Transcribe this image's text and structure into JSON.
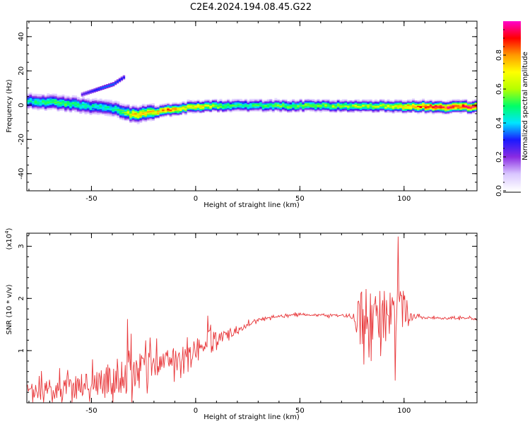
{
  "figure": {
    "title": "C2E4.2024.194.08.45.G22"
  },
  "chart_data": [
    {
      "type": "heatmap",
      "title": "C2E4.2024.194.08.45.G22",
      "xlabel": "Height of straight line (km)",
      "ylabel": "Frequency (Hz)",
      "xlim": [
        -81,
        135
      ],
      "ylim": [
        -50,
        49
      ],
      "xticks": [
        -50,
        0,
        50,
        100
      ],
      "yticks": [
        -40,
        -20,
        0,
        20,
        40
      ],
      "colorbar": {
        "label": "Normalized spectral amplitude",
        "range": [
          0,
          1
        ],
        "ticks": [
          0.0,
          0.2,
          0.4,
          0.6,
          0.8
        ],
        "colors": [
          "#ffffff",
          "#d9c6ff",
          "#8a2be2",
          "#1a1aff",
          "#00e5ff",
          "#00ff66",
          "#b5ff00",
          "#ffff00",
          "#ff9900",
          "#ff0000",
          "#ff00cc"
        ]
      },
      "ridge": {
        "x": [
          -80,
          -70,
          -60,
          -50,
          -40,
          -35,
          -30,
          -25,
          -20,
          -15,
          -10,
          -5,
          0,
          10,
          20,
          30,
          40,
          50,
          60,
          70,
          80,
          90,
          100,
          110,
          120,
          135
        ],
        "frequency": [
          2,
          1.5,
          0.5,
          -1,
          -2.5,
          -4,
          -6,
          -5,
          -4,
          -3,
          -2.5,
          -1.5,
          -1,
          -0.5,
          -0.5,
          -0.5,
          -0.7,
          -0.5,
          -0.6,
          -0.7,
          -0.8,
          -0.7,
          -0.8,
          -1.0,
          -1.2,
          -1.2
        ],
        "amplitude": [
          0.45,
          0.5,
          0.5,
          0.45,
          0.45,
          0.55,
          0.75,
          0.7,
          0.75,
          0.8,
          0.75,
          0.65,
          0.7,
          0.6,
          0.5,
          0.5,
          0.55,
          0.55,
          0.55,
          0.6,
          0.6,
          0.6,
          0.75,
          0.85,
          0.9,
          0.9
        ]
      },
      "branch": {
        "x": [
          -55,
          -50,
          -45,
          -40,
          -35
        ],
        "frequency": [
          6,
          8,
          10,
          12,
          16
        ],
        "amplitude": [
          0.25,
          0.3,
          0.35,
          0.35,
          0.3
        ]
      }
    },
    {
      "type": "line",
      "xlabel": "Height of straight line (km)",
      "ylabel": "SNR (10 * v/v)",
      "yscale_note": "(x10",
      "yscale_exp": "4",
      "yscale_close": ")",
      "xlim": [
        -81,
        135
      ],
      "ylim": [
        0,
        3.25
      ],
      "xticks": [
        -50,
        0,
        50,
        100
      ],
      "yticks": [
        1,
        2,
        3
      ],
      "line_color": "#e8373a",
      "series": [
        {
          "x": [
            -80,
            -70,
            -60,
            -50,
            -40,
            -35,
            -32,
            -30,
            -25,
            -20,
            -15,
            -10,
            -5,
            0,
            5,
            7,
            10,
            15,
            20,
            25,
            30,
            35,
            40,
            45,
            50,
            55,
            60,
            65,
            70,
            75,
            78,
            80,
            82,
            85,
            88,
            90,
            92,
            95,
            97,
            98,
            99,
            100,
            101,
            103,
            110,
            120,
            130,
            135
          ],
          "y": [
            0.2,
            0.25,
            0.3,
            0.4,
            0.45,
            0.5,
            0.7,
            0.55,
            0.6,
            0.7,
            0.8,
            0.85,
            0.9,
            1.0,
            1.15,
            1.3,
            1.2,
            1.3,
            1.4,
            1.5,
            1.6,
            1.62,
            1.66,
            1.68,
            1.7,
            1.67,
            1.68,
            1.67,
            1.67,
            1.66,
            1.7,
            1.65,
            1.8,
            1.6,
            1.7,
            1.55,
            1.75,
            1.6,
            1.8,
            1.6,
            1.7,
            1.65,
            1.62,
            1.65,
            1.63,
            1.62,
            1.63,
            1.6
          ],
          "noise": [
            0.15,
            0.2,
            0.25,
            0.3,
            0.3,
            0.35,
            0.5,
            0.4,
            0.35,
            0.3,
            0.25,
            0.2,
            0.18,
            0.15,
            0.2,
            0.25,
            0.12,
            0.1,
            0.08,
            0.05,
            0.03,
            0.02,
            0.02,
            0.02,
            0.02,
            0.02,
            0.02,
            0.02,
            0.02,
            0.05,
            0.45,
            0.7,
            0.5,
            0.4,
            0.5,
            0.6,
            0.45,
            0.5,
            0.9,
            1.0,
            0.8,
            0.6,
            0.3,
            0.08,
            0.02,
            0.02,
            0.02,
            0.02
          ]
        }
      ]
    }
  ]
}
